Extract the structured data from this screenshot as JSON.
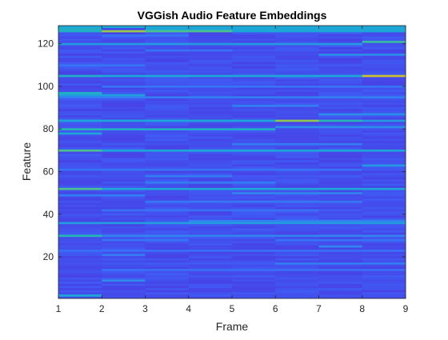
{
  "chart_data": {
    "type": "heatmap",
    "title": "VGGish Audio Feature Embeddings",
    "xlabel": "Frame",
    "ylabel": "Feature",
    "xlim": [
      1,
      9
    ],
    "ylim": [
      1,
      128
    ],
    "x_ticks": [
      "1",
      "2",
      "3",
      "4",
      "5",
      "6",
      "7",
      "8",
      "9"
    ],
    "y_ticks": [
      "20",
      "40",
      "60",
      "80",
      "100",
      "120"
    ],
    "frames": 8,
    "features": 128,
    "colormap": "parula",
    "colormap_stops": [
      "#3e26a8",
      "#4743e6",
      "#3d64fa",
      "#2f88ee",
      "#1ca6d8",
      "#26b8b2",
      "#52c388",
      "#8fc753",
      "#c7c12f",
      "#f3b92e"
    ],
    "baseline_value": 0.15,
    "lines": [
      {
        "feature": 2,
        "frames": [
          1
        ],
        "value": 0.45
      },
      {
        "feature": 9,
        "frames": [
          2
        ],
        "value": 0.35
      },
      {
        "feature": 14,
        "frames": [
          2,
          3,
          4,
          5,
          6,
          7,
          8
        ],
        "value": 0.26
      },
      {
        "feature": 17,
        "frames": [
          6,
          7,
          8
        ],
        "value": 0.3
      },
      {
        "feature": 21,
        "frames": [
          2
        ],
        "value": 0.3
      },
      {
        "feature": 23,
        "frames": [
          1,
          2,
          3,
          4,
          5,
          6,
          7,
          8
        ],
        "value": 0.26
      },
      {
        "feature": 25,
        "frames": [
          7
        ],
        "value": 0.32
      },
      {
        "feature": 28,
        "frames": [
          2,
          3,
          6,
          7,
          8
        ],
        "value": 0.27
      },
      {
        "feature": 30,
        "frames": [
          1
        ],
        "value": 0.55
      },
      {
        "feature": 30,
        "frames": [
          2,
          3,
          4,
          5,
          6,
          7,
          8
        ],
        "value": 0.32
      },
      {
        "feature": 36,
        "frames": [
          1,
          2,
          3,
          4,
          5,
          6,
          7,
          8
        ],
        "value": 0.4
      },
      {
        "feature": 37,
        "frames": [
          4,
          5,
          6,
          7,
          8
        ],
        "value": 0.32
      },
      {
        "feature": 42,
        "frames": [
          2,
          3,
          4,
          5,
          6
        ],
        "value": 0.27
      },
      {
        "feature": 46,
        "frames": [
          3,
          4,
          5,
          6,
          7
        ],
        "value": 0.28
      },
      {
        "feature": 49,
        "frames": [
          1,
          2
        ],
        "value": 0.3
      },
      {
        "feature": 50,
        "frames": [
          5,
          6,
          7
        ],
        "value": 0.32
      },
      {
        "feature": 52,
        "frames": [
          1
        ],
        "value": 0.65
      },
      {
        "feature": 52,
        "frames": [
          2,
          3,
          4,
          5,
          6,
          7,
          8
        ],
        "value": 0.45
      },
      {
        "feature": 55,
        "frames": [
          3,
          4,
          5
        ],
        "value": 0.3
      },
      {
        "feature": 58,
        "frames": [
          3,
          4
        ],
        "value": 0.3
      },
      {
        "feature": 61,
        "frames": [
          1,
          2,
          3,
          4,
          5,
          6,
          7
        ],
        "value": 0.27
      },
      {
        "feature": 63,
        "frames": [
          8
        ],
        "value": 0.4
      },
      {
        "feature": 70,
        "frames": [
          1
        ],
        "value": 0.65
      },
      {
        "feature": 70,
        "frames": [
          2,
          3,
          4,
          5,
          6,
          7,
          8
        ],
        "value": 0.45
      },
      {
        "feature": 73,
        "frames": [
          5,
          6,
          7
        ],
        "value": 0.3
      },
      {
        "feature": 78,
        "frames": [
          1
        ],
        "value": 0.45
      },
      {
        "feature": 80,
        "frames": [
          1
        ],
        "value": 0.55
      },
      {
        "feature": 80,
        "frames": [
          2,
          3,
          4,
          5
        ],
        "value": 0.5
      },
      {
        "feature": 81,
        "frames": [
          6,
          7,
          8
        ],
        "value": 0.35
      },
      {
        "feature": 84,
        "frames": [
          1,
          2,
          3,
          4,
          5
        ],
        "value": 0.45
      },
      {
        "feature": 84,
        "frames": [
          6
        ],
        "value": 0.78
      },
      {
        "feature": 84,
        "frames": [
          7
        ],
        "value": 0.55
      },
      {
        "feature": 84,
        "frames": [
          8
        ],
        "value": 0.4
      },
      {
        "feature": 87,
        "frames": [
          7,
          8
        ],
        "value": 0.35
      },
      {
        "feature": 91,
        "frames": [
          5,
          6
        ],
        "value": 0.3
      },
      {
        "feature": 95,
        "frames": [
          1,
          2,
          3,
          4,
          5,
          6,
          7,
          8
        ],
        "value": 0.3
      },
      {
        "feature": 96,
        "frames": [
          1,
          2
        ],
        "value": 0.42
      },
      {
        "feature": 97,
        "frames": [
          1
        ],
        "value": 0.5
      },
      {
        "feature": 100,
        "frames": [
          2,
          3,
          4,
          5,
          6,
          7,
          8
        ],
        "value": 0.27
      },
      {
        "feature": 105,
        "frames": [
          1
        ],
        "value": 0.5
      },
      {
        "feature": 105,
        "frames": [
          2,
          3,
          4,
          5,
          6,
          7
        ],
        "value": 0.45
      },
      {
        "feature": 105,
        "frames": [
          8
        ],
        "value": 0.9
      },
      {
        "feature": 110,
        "frames": [
          1,
          2
        ],
        "value": 0.27
      },
      {
        "feature": 115,
        "frames": [
          7,
          8
        ],
        "value": 0.35
      },
      {
        "feature": 117,
        "frames": [
          3,
          4
        ],
        "value": 0.27
      },
      {
        "feature": 120,
        "frames": [
          1,
          2,
          3,
          4,
          5,
          6,
          7
        ],
        "value": 0.4
      },
      {
        "feature": 121,
        "frames": [
          8
        ],
        "value": 0.6
      },
      {
        "feature": 124,
        "frames": [
          2,
          3
        ],
        "value": 0.27
      },
      {
        "feature": 126,
        "frames": [
          1
        ],
        "value": 0.5
      },
      {
        "feature": 126,
        "frames": [
          2
        ],
        "value": 0.8
      },
      {
        "feature": 126,
        "frames": [
          3,
          4
        ],
        "value": 0.65
      },
      {
        "feature": 126,
        "frames": [
          5,
          6,
          7,
          8
        ],
        "value": 0.45
      },
      {
        "feature": 127,
        "frames": [
          1
        ],
        "value": 0.5
      },
      {
        "feature": 127,
        "frames": [
          3,
          4,
          5,
          6,
          7,
          8
        ],
        "value": 0.45
      },
      {
        "feature": 128,
        "frames": [
          1,
          2,
          3,
          4,
          5,
          6,
          7,
          8
        ],
        "value": 0.45
      }
    ]
  }
}
